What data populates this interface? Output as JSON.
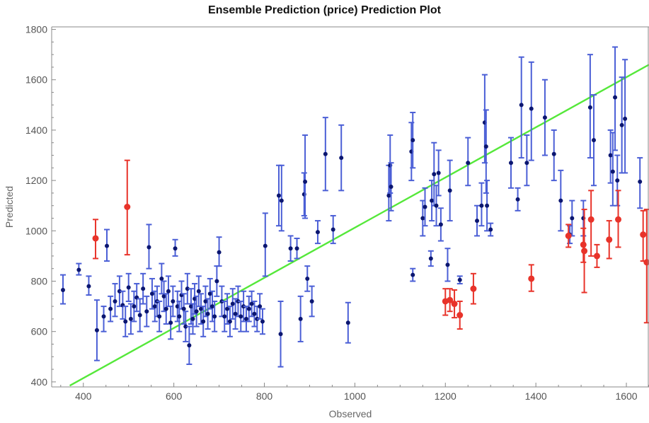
{
  "chart_data": {
    "type": "scatter",
    "title": "Ensemble Prediction (price) Prediction Plot",
    "xlabel": "Observed",
    "ylabel": "Predicted",
    "xlim": [
      330,
      1650
    ],
    "ylim": [
      380,
      1810
    ],
    "x_ticks": [
      400,
      600,
      800,
      1000,
      1200,
      1400,
      1600
    ],
    "y_ticks": [
      400,
      600,
      800,
      1000,
      1200,
      1400,
      1600,
      1800
    ],
    "grid": false,
    "reference_line": {
      "color": "#55e83a",
      "points": [
        [
          370,
          385
        ],
        [
          1650,
          1660
        ]
      ]
    },
    "series": [
      {
        "color": "#0b1670",
        "errorbar_color": "#4b5fd6",
        "points": [
          [
            355,
            765,
            710,
            825
          ],
          [
            390,
            845,
            825,
            870
          ],
          [
            412,
            780,
            745,
            820
          ],
          [
            430,
            605,
            485,
            725
          ],
          [
            445,
            660,
            600,
            700
          ],
          [
            452,
            940,
            880,
            1005
          ],
          [
            460,
            690,
            640,
            740
          ],
          [
            470,
            720,
            660,
            790
          ],
          [
            480,
            760,
            700,
            820
          ],
          [
            487,
            705,
            650,
            760
          ],
          [
            493,
            640,
            580,
            700
          ],
          [
            500,
            775,
            720,
            830
          ],
          [
            505,
            650,
            590,
            710
          ],
          [
            512,
            700,
            640,
            760
          ],
          [
            518,
            735,
            680,
            790
          ],
          [
            525,
            665,
            600,
            730
          ],
          [
            532,
            770,
            710,
            830
          ],
          [
            540,
            680,
            620,
            740
          ],
          [
            545,
            935,
            850,
            1025
          ],
          [
            552,
            750,
            690,
            810
          ],
          [
            558,
            700,
            640,
            760
          ],
          [
            563,
            720,
            660,
            780
          ],
          [
            568,
            660,
            600,
            720
          ],
          [
            573,
            810,
            750,
            870
          ],
          [
            578,
            740,
            680,
            800
          ],
          [
            583,
            690,
            630,
            750
          ],
          [
            588,
            760,
            700,
            820
          ],
          [
            593,
            635,
            570,
            700
          ],
          [
            598,
            720,
            660,
            780
          ],
          [
            603,
            930,
            900,
            965
          ],
          [
            608,
            700,
            640,
            760
          ],
          [
            612,
            660,
            600,
            720
          ],
          [
            617,
            745,
            690,
            800
          ],
          [
            622,
            690,
            630,
            750
          ],
          [
            626,
            620,
            560,
            680
          ],
          [
            630,
            770,
            710,
            830
          ],
          [
            634,
            545,
            470,
            620
          ],
          [
            638,
            700,
            630,
            770
          ],
          [
            642,
            650,
            590,
            710
          ],
          [
            646,
            730,
            670,
            790
          ],
          [
            650,
            680,
            620,
            740
          ],
          [
            655,
            760,
            700,
            820
          ],
          [
            660,
            690,
            630,
            750
          ],
          [
            665,
            640,
            580,
            700
          ],
          [
            670,
            720,
            660,
            780
          ],
          [
            675,
            670,
            610,
            730
          ],
          [
            680,
            750,
            690,
            810
          ],
          [
            685,
            700,
            640,
            760
          ],
          [
            690,
            660,
            600,
            720
          ],
          [
            695,
            800,
            740,
            860
          ],
          [
            700,
            915,
            860,
            975
          ],
          [
            706,
            720,
            660,
            780
          ],
          [
            712,
            660,
            600,
            720
          ],
          [
            718,
            690,
            630,
            750
          ],
          [
            724,
            640,
            580,
            700
          ],
          [
            730,
            710,
            650,
            770
          ],
          [
            736,
            670,
            610,
            730
          ],
          [
            742,
            720,
            660,
            780
          ],
          [
            748,
            660,
            600,
            720
          ],
          [
            754,
            700,
            640,
            760
          ],
          [
            760,
            650,
            600,
            700
          ],
          [
            766,
            690,
            640,
            740
          ],
          [
            772,
            710,
            660,
            760
          ],
          [
            778,
            670,
            620,
            720
          ],
          [
            784,
            650,
            600,
            700
          ],
          [
            790,
            700,
            650,
            750
          ],
          [
            796,
            640,
            590,
            690
          ],
          [
            802,
            940,
            820,
            1070
          ],
          [
            832,
            1140,
            1020,
            1260
          ],
          [
            838,
            1120,
            1000,
            1260
          ],
          [
            836,
            590,
            460,
            720
          ],
          [
            858,
            930,
            880,
            980
          ],
          [
            872,
            930,
            890,
            970
          ],
          [
            888,
            1145,
            1060,
            1230
          ],
          [
            890,
            1195,
            1050,
            1380
          ],
          [
            880,
            650,
            560,
            740
          ],
          [
            895,
            810,
            760,
            860
          ],
          [
            905,
            720,
            660,
            780
          ],
          [
            918,
            995,
            950,
            1040
          ],
          [
            935,
            1305,
            1160,
            1450
          ],
          [
            952,
            1005,
            950,
            1060
          ],
          [
            970,
            1290,
            1160,
            1420
          ],
          [
            985,
            635,
            555,
            715
          ],
          [
            1075,
            1140,
            1040,
            1260
          ],
          [
            1078,
            1260,
            1150,
            1380
          ],
          [
            1080,
            1175,
            1080,
            1270
          ],
          [
            1125,
            1315,
            1200,
            1430
          ],
          [
            1128,
            1360,
            1250,
            1470
          ],
          [
            1128,
            825,
            800,
            850
          ],
          [
            1150,
            1050,
            980,
            1120
          ],
          [
            1155,
            1095,
            1020,
            1170
          ],
          [
            1168,
            890,
            860,
            920
          ],
          [
            1170,
            1120,
            1040,
            1200
          ],
          [
            1175,
            1225,
            1100,
            1350
          ],
          [
            1180,
            1100,
            1020,
            1180
          ],
          [
            1185,
            1230,
            1140,
            1320
          ],
          [
            1190,
            1025,
            960,
            1090
          ],
          [
            1205,
            865,
            800,
            930
          ],
          [
            1210,
            1160,
            1040,
            1280
          ],
          [
            1232,
            805,
            790,
            820
          ],
          [
            1250,
            1270,
            1180,
            1370
          ],
          [
            1270,
            1040,
            980,
            1100
          ],
          [
            1280,
            1100,
            1020,
            1190
          ],
          [
            1287,
            1430,
            1270,
            1620
          ],
          [
            1290,
            1335,
            1150,
            1480
          ],
          [
            1292,
            1100,
            1000,
            1200
          ],
          [
            1300,
            1005,
            980,
            1030
          ],
          [
            1345,
            1270,
            1170,
            1370
          ],
          [
            1360,
            1125,
            1080,
            1170
          ],
          [
            1368,
            1500,
            1290,
            1690
          ],
          [
            1380,
            1270,
            1180,
            1380
          ],
          [
            1390,
            1485,
            1280,
            1670
          ],
          [
            1420,
            1450,
            1300,
            1600
          ],
          [
            1440,
            1305,
            1200,
            1400
          ],
          [
            1455,
            1120,
            1000,
            1240
          ],
          [
            1475,
            985,
            950,
            1020
          ],
          [
            1480,
            1050,
            980,
            1120
          ],
          [
            1505,
            1050,
            980,
            1120
          ],
          [
            1520,
            1490,
            1290,
            1700
          ],
          [
            1528,
            1360,
            1180,
            1540
          ],
          [
            1565,
            1300,
            1190,
            1400
          ],
          [
            1570,
            1235,
            1100,
            1390
          ],
          [
            1575,
            1530,
            1320,
            1730
          ],
          [
            1580,
            1200,
            1100,
            1300
          ],
          [
            1590,
            1420,
            1230,
            1610
          ],
          [
            1597,
            1445,
            1230,
            1680
          ],
          [
            1630,
            1195,
            1090,
            1290
          ]
        ]
      },
      {
        "color": "#e8332a",
        "errorbar_color": "#e8332a",
        "points": [
          [
            427,
            970,
            890,
            1045
          ],
          [
            497,
            1095,
            905,
            1280
          ],
          [
            1200,
            720,
            665,
            770
          ],
          [
            1210,
            725,
            680,
            770
          ],
          [
            1220,
            710,
            655,
            765
          ],
          [
            1232,
            665,
            610,
            720
          ],
          [
            1262,
            770,
            710,
            830
          ],
          [
            1390,
            810,
            760,
            865
          ],
          [
            1472,
            980,
            935,
            1025
          ],
          [
            1505,
            945,
            875,
            1010
          ],
          [
            1507,
            920,
            755,
            1085
          ],
          [
            1522,
            1045,
            900,
            1160
          ],
          [
            1535,
            900,
            855,
            945
          ],
          [
            1562,
            965,
            890,
            1040
          ],
          [
            1582,
            1045,
            935,
            1160
          ],
          [
            1637,
            985,
            880,
            1080
          ],
          [
            1645,
            875,
            635,
            1085
          ]
        ]
      }
    ]
  }
}
